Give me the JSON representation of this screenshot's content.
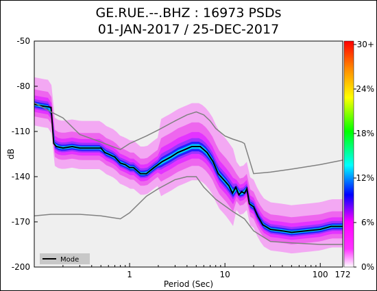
{
  "title_line1": "GE.RUE.--.BHZ : 16973 PSDs",
  "title_line2": "01-JAN-2017 / 25-DEC-2017",
  "chart_data": {
    "type": "heatmap",
    "title": "GE.RUE.--.BHZ : 16973 PSDs\n01-JAN-2017 / 25-DEC-2017",
    "xlabel": "Period (Sec)",
    "ylabel": "dB",
    "x_scale": "log",
    "xlim": [
      0.1,
      172
    ],
    "ylim": [
      -200,
      -50
    ],
    "x_ticks": [
      {
        "v": 1,
        "label": "1"
      },
      {
        "v": 10,
        "label": "10"
      },
      {
        "v": 100,
        "label": "100"
      },
      {
        "v": 172,
        "label": "172"
      }
    ],
    "y_ticks": [
      -50,
      -80,
      -110,
      -140,
      -170,
      -200
    ],
    "colorbar": {
      "labels": [
        "0%",
        "6%",
        "12%",
        "18%",
        "24%",
        "30+"
      ],
      "colors": [
        "#ffffff",
        "#ff33ff",
        "#0000ff",
        "#00ffff",
        "#00ff00",
        "#ffff00",
        "#ff8800",
        "#ff0000"
      ]
    },
    "legend": {
      "position": "bottom-left",
      "entries": [
        "Mode"
      ]
    },
    "series": [
      {
        "name": "Mode",
        "x": [
          0.1,
          0.12,
          0.15,
          0.16,
          0.17,
          0.2,
          0.25,
          0.3,
          0.4,
          0.5,
          0.55,
          0.6,
          0.7,
          0.8,
          0.9,
          1.0,
          1.1,
          1.3,
          1.5,
          1.8,
          2.2,
          2.7,
          3.2,
          3.8,
          4.5,
          5.5,
          6.5,
          7.5,
          8.5,
          10,
          11,
          12,
          13,
          14,
          15,
          16,
          17,
          18,
          20,
          22,
          25,
          30,
          40,
          50,
          70,
          100,
          130,
          172
        ],
        "y": [
          -92,
          -93,
          -94,
          -118,
          -120,
          -121,
          -120,
          -121,
          -121,
          -121,
          -124,
          -125,
          -127,
          -131,
          -132,
          -134,
          -134,
          -138,
          -138,
          -134,
          -130,
          -127,
          -124,
          -122,
          -120,
          -120,
          -124,
          -130,
          -138,
          -143,
          -146,
          -151,
          -147,
          -152,
          -150,
          -151,
          -148,
          -158,
          -160,
          -166,
          -172,
          -175,
          -176,
          -177,
          -176,
          -175,
          -173,
          -173
        ]
      },
      {
        "name": "",
        "x": [
          0.1,
          0.15,
          0.2,
          0.3,
          0.5,
          0.8,
          1.0,
          1.5,
          2.0,
          3.0,
          4.0,
          5.0,
          6.0,
          8.0,
          12,
          16,
          20,
          30,
          50,
          100,
          172
        ],
        "y": [
          -166,
          -165,
          -165,
          -165,
          -166,
          -168,
          -164,
          -153,
          -148,
          -142,
          -140,
          -140,
          -147,
          -155,
          -163,
          -168,
          -176,
          -183,
          -184,
          -185,
          -185
        ]
      },
      {
        "name": "",
        "x": [
          0.1,
          0.15,
          0.2,
          0.3,
          0.5,
          0.8,
          1.0,
          1.5,
          2.0,
          3.0,
          4.0,
          5.0,
          6.0,
          7.0,
          8.0,
          10,
          12,
          15,
          16,
          20,
          30,
          50,
          100,
          172
        ],
        "y": [
          -91,
          -97,
          -101,
          -112,
          -117,
          -122,
          -118,
          -113,
          -109,
          -103,
          -99,
          -97,
          -99,
          -103,
          -108,
          -113,
          -115,
          -117,
          -118,
          -138,
          -137,
          -135,
          -132,
          -129
        ]
      }
    ]
  }
}
